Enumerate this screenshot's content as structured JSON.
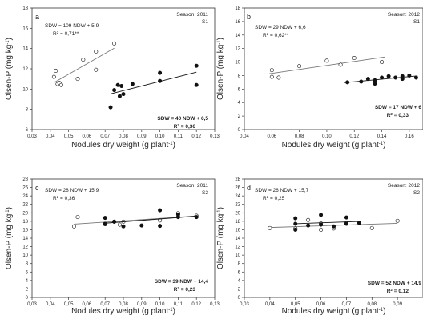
{
  "chart_data": [
    {
      "panel": "a",
      "type": "scatter",
      "season": "Season: 2011",
      "site": "S1",
      "xlabel": "Nodules dry weight (g plant",
      "xlabel_sup": "-1",
      "xlabel_tail": ")",
      "ylabel": "Olsen-P (mg kg",
      "ylabel_sup": "-1",
      "ylabel_tail": ")",
      "xlim": [
        0.03,
        0.13
      ],
      "ylim": [
        6,
        18
      ],
      "xticks": [
        "0,03",
        "0,04",
        "0,05",
        "0,06",
        "0,07",
        "0,08",
        "0,09",
        "0,10",
        "0,11",
        "0,12",
        "0,13"
      ],
      "yticks": [
        "6",
        "8",
        "10",
        "12",
        "14",
        "16",
        "18"
      ],
      "series": [
        {
          "marker": "open",
          "points": [
            [
              0.042,
              11.2
            ],
            [
              0.043,
              11.8
            ],
            [
              0.044,
              10.5
            ],
            [
              0.045,
              10.6
            ],
            [
              0.046,
              10.4
            ],
            [
              0.055,
              11.0
            ],
            [
              0.058,
              12.9
            ],
            [
              0.065,
              11.9
            ],
            [
              0.065,
              13.7
            ],
            [
              0.075,
              14.5
            ]
          ],
          "fit_x": [
            0.042,
            0.075
          ],
          "fit_eq": "SDW = 109 NDW + 5,9",
          "r2": "R",
          "r2_sup": "2",
          "r2_val": " = 0,71**"
        },
        {
          "marker": "filled",
          "points": [
            [
              0.073,
              8.2
            ],
            [
              0.075,
              9.9
            ],
            [
              0.077,
              10.4
            ],
            [
              0.078,
              9.3
            ],
            [
              0.079,
              10.3
            ],
            [
              0.08,
              9.5
            ],
            [
              0.085,
              10.5
            ],
            [
              0.1,
              11.6
            ],
            [
              0.1,
              10.8
            ],
            [
              0.12,
              12.3
            ],
            [
              0.12,
              10.4
            ]
          ],
          "fit_x": [
            0.073,
            0.12
          ],
          "fit_eq": "SDW = 40 NDW + 6,5",
          "r2": "R",
          "r2_sup": "2",
          "r2_val": " = 0,36"
        }
      ]
    },
    {
      "panel": "b",
      "type": "scatter",
      "season": "Season: 2012",
      "site": "S1",
      "xlabel": "Nodules dry weight (g plant",
      "xlabel_sup": "-1",
      "xlabel_tail": ")",
      "ylabel": "Olsen-P (mg kg",
      "ylabel_sup": "-1",
      "ylabel_tail": ")",
      "xlim": [
        0.04,
        0.17
      ],
      "ylim": [
        0,
        18
      ],
      "xticks": [
        "0,04",
        "0,06",
        "0,08",
        "0,10",
        "0,12",
        "0,14",
        "0,16"
      ],
      "yticks": [
        "0",
        "2",
        "4",
        "6",
        "8",
        "10",
        "12",
        "14",
        "16",
        "18"
      ],
      "series": [
        {
          "marker": "open",
          "points": [
            [
              0.06,
              7.8
            ],
            [
              0.06,
              8.8
            ],
            [
              0.065,
              7.7
            ],
            [
              0.08,
              9.4
            ],
            [
              0.1,
              10.2
            ],
            [
              0.11,
              9.6
            ],
            [
              0.12,
              10.6
            ],
            [
              0.14,
              10.0
            ]
          ],
          "fit_x": [
            0.058,
            0.142
          ],
          "fit_eq": "SDW = 29 NDW + 6,6",
          "r2": "R",
          "r2_sup": "2",
          "r2_val": " = 0,62**"
        },
        {
          "marker": "filled",
          "points": [
            [
              0.115,
              7.0
            ],
            [
              0.125,
              7.1
            ],
            [
              0.13,
              7.5
            ],
            [
              0.135,
              6.8
            ],
            [
              0.135,
              7.3
            ],
            [
              0.14,
              7.7
            ],
            [
              0.145,
              7.9
            ],
            [
              0.15,
              7.7
            ],
            [
              0.155,
              7.5
            ],
            [
              0.155,
              7.9
            ],
            [
              0.16,
              8.0
            ],
            [
              0.165,
              7.7
            ]
          ],
          "fit_x": [
            0.113,
            0.166
          ],
          "fit_eq": "SDW = 17 NDW + 6",
          "r2": "R",
          "r2_sup": "2",
          "r2_val": " = 0,33"
        }
      ]
    },
    {
      "panel": "c",
      "type": "scatter",
      "season": "Season: 2011",
      "site": "S2",
      "xlabel": "Nodules dry weight (g plant",
      "xlabel_sup": "-1",
      "xlabel_tail": ")",
      "ylabel": "Olsen-P (mg kg",
      "ylabel_sup": "-1",
      "ylabel_tail": ")",
      "xlim": [
        0.03,
        0.13
      ],
      "ylim": [
        0,
        28
      ],
      "xticks": [
        "0,03",
        "0,04",
        "0,05",
        "0,06",
        "0,07",
        "0,08",
        "0,09",
        "0,10",
        "0,11",
        "0,12",
        "0,13"
      ],
      "yticks": [
        "0",
        "2",
        "4",
        "6",
        "8",
        "10",
        "12",
        "14",
        "16",
        "18",
        "20",
        "22",
        "24",
        "26",
        "28"
      ],
      "series": [
        {
          "marker": "open",
          "points": [
            [
              0.053,
              16.8
            ],
            [
              0.055,
              19.0
            ],
            [
              0.07,
              17.3
            ],
            [
              0.075,
              17.9
            ],
            [
              0.078,
              17.2
            ],
            [
              0.08,
              17.9
            ],
            [
              0.1,
              18.2
            ],
            [
              0.11,
              19.9
            ],
            [
              0.12,
              19.3
            ]
          ],
          "fit_x": [
            0.053,
            0.121
          ],
          "fit_eq": "SDW = 28 NDW + 15,9",
          "r2": "R",
          "r2_sup": "2",
          "r2_val": " = 0,36"
        },
        {
          "marker": "filled",
          "points": [
            [
              0.07,
              18.8
            ],
            [
              0.07,
              17.4
            ],
            [
              0.075,
              17.9
            ],
            [
              0.08,
              16.8
            ],
            [
              0.09,
              17.0
            ],
            [
              0.1,
              20.6
            ],
            [
              0.1,
              16.9
            ],
            [
              0.11,
              19.0
            ],
            [
              0.11,
              19.6
            ],
            [
              0.12,
              19.0
            ]
          ],
          "fit_x": [
            0.07,
            0.12
          ],
          "fit_eq": "SDW = 39 NDW + 14,4",
          "r2": "R",
          "r2_sup": "2",
          "r2_val": " = 0,23"
        }
      ]
    },
    {
      "panel": "d",
      "type": "scatter",
      "season": "Season: 2012",
      "site": "S2",
      "xlabel": "Nodules dry weight (g plant",
      "xlabel_sup": "-1",
      "xlabel_tail": ")",
      "ylabel": "Olsen-P (mg kg",
      "ylabel_sup": "-1",
      "ylabel_tail": ")",
      "xlim": [
        0.03,
        0.1
      ],
      "ylim": [
        0,
        28
      ],
      "xticks": [
        "0,03",
        "0,04",
        "0,05",
        "0,06",
        "0,07",
        "0,08",
        "0,09"
      ],
      "yticks": [
        "0",
        "2",
        "4",
        "6",
        "8",
        "10",
        "12",
        "14",
        "16",
        "18",
        "20",
        "22",
        "24",
        "26",
        "28"
      ],
      "series": [
        {
          "marker": "open",
          "points": [
            [
              0.04,
              16.4
            ],
            [
              0.05,
              16.3
            ],
            [
              0.055,
              18.3
            ],
            [
              0.06,
              16.0
            ],
            [
              0.06,
              17.5
            ],
            [
              0.065,
              16.3
            ],
            [
              0.07,
              17.6
            ],
            [
              0.08,
              16.4
            ],
            [
              0.09,
              18.1
            ]
          ],
          "fit_x": [
            0.04,
            0.09
          ],
          "fit_eq": "SDW = 26 NDW + 15,7",
          "r2": "R",
          "r2_sup": "2",
          "r2_val": " = 0,25"
        },
        {
          "marker": "filled",
          "points": [
            [
              0.05,
              16.0
            ],
            [
              0.05,
              18.7
            ],
            [
              0.05,
              17.4
            ],
            [
              0.055,
              17.0
            ],
            [
              0.06,
              19.5
            ],
            [
              0.06,
              17.2
            ],
            [
              0.065,
              16.8
            ],
            [
              0.07,
              17.4
            ],
            [
              0.07,
              18.9
            ],
            [
              0.075,
              17.6
            ]
          ],
          "fit_x": [
            0.05,
            0.075
          ],
          "fit_eq": "SDW = 52 NDW + 14,9",
          "r2": "R",
          "r2_sup": "2",
          "r2_val": " = 0,12"
        }
      ]
    }
  ]
}
